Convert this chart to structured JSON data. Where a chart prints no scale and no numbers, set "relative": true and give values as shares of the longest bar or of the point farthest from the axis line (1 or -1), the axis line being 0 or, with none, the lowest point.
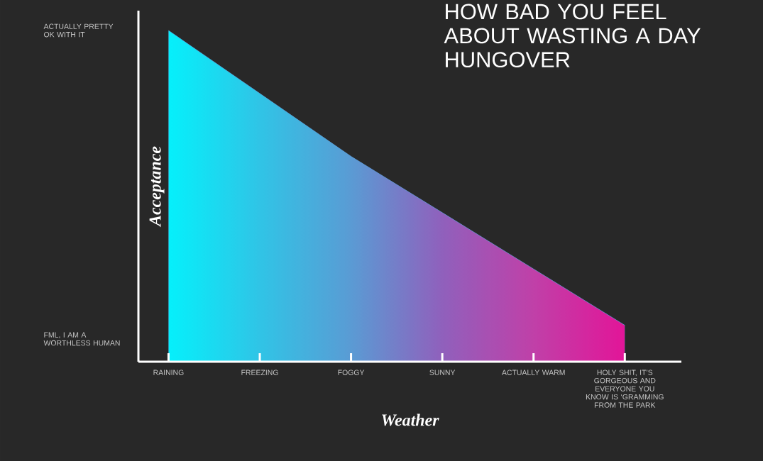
{
  "chart_data": {
    "type": "area",
    "title": "HOW BAD YOU FEEL ABOUT WASTING A DAY HUNGOVER",
    "xlabel": "Weather",
    "ylabel": "Acceptance",
    "categories": [
      "RAINING",
      "FREEZING",
      "FOGGY",
      "SUNNY",
      "ACTUALLY WARM",
      "HOLY SHIT, IT’S GORGEOUS AND EVERYONE YOU KNOW IS ‘GRAMMING FROM THE PARK"
    ],
    "series": [
      {
        "values": [
          1,
          0.81,
          0.62,
          0.45,
          0.28,
          0.11
        ],
        "color": "#5a9bd4",
        "colors": [
          "#05f0fb",
          "#30c4e6",
          "#5a9bd4",
          "#9060bc",
          "#c040a8",
          "#e21598"
        ]
      }
    ],
    "relative": true,
    "annotations": [
      "ACTUALLY PRETTY OK WITH IT",
      "FML, I AM A WORTHLESS HUMAN"
    ],
    "grid": false
  }
}
